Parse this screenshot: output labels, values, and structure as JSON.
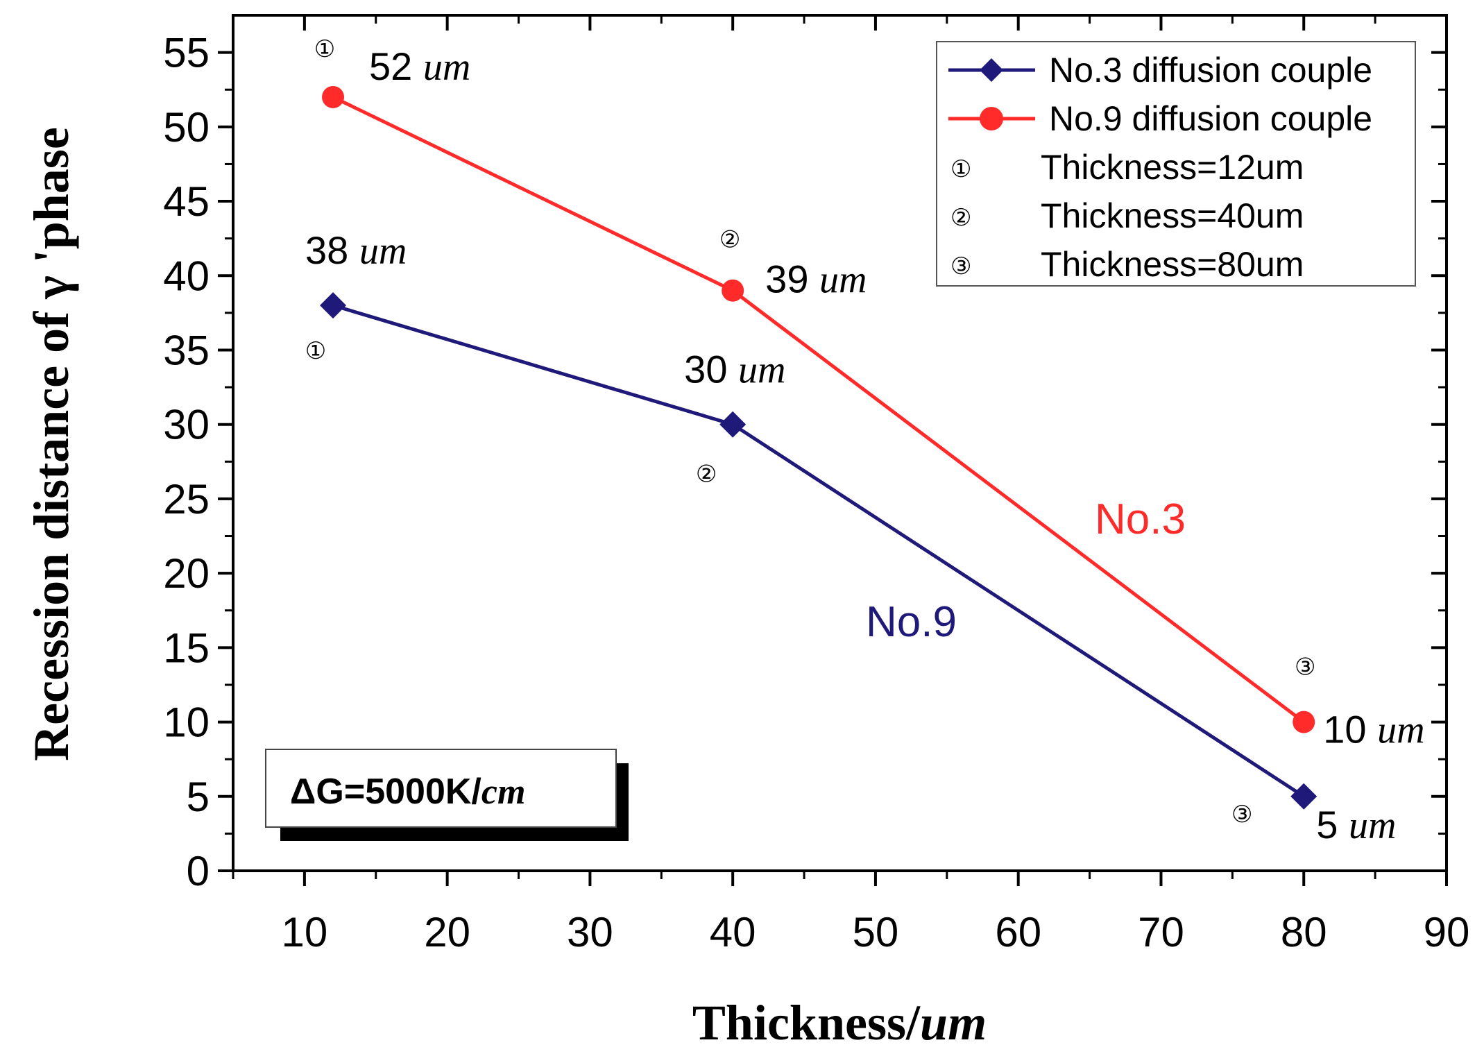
{
  "chart_data": {
    "type": "line",
    "xlabel": {
      "main": "Thickness/",
      "unit": "um"
    },
    "ylabel": "Recession distance of γ 'phase",
    "xlim": [
      5,
      90
    ],
    "ylim": [
      0,
      57.5
    ],
    "xticks": [
      10,
      20,
      30,
      40,
      50,
      60,
      70,
      80,
      90
    ],
    "yticks": [
      0,
      5,
      10,
      15,
      20,
      25,
      30,
      35,
      40,
      45,
      50,
      55
    ],
    "x_tick_labels": [
      "10",
      "20",
      "30",
      "40",
      "50",
      "60",
      "70",
      "80",
      "90"
    ],
    "y_tick_labels": [
      "0",
      "5",
      "10",
      "15",
      "20",
      "25",
      "30",
      "35",
      "40",
      "45",
      "50",
      "55"
    ],
    "grid": false,
    "legend_position": "top-right",
    "series": [
      {
        "name": "No.3 diffusion couple",
        "marker": "diamond",
        "color": "#1f1a7a",
        "x": [
          12,
          40,
          80
        ],
        "values": [
          38,
          30,
          5
        ],
        "labels": [
          {
            "num": "38",
            "unit": "um"
          },
          {
            "num": "30",
            "unit": "um"
          },
          {
            "num": "5",
            "unit": "um"
          }
        ]
      },
      {
        "name": "No.9 diffusion couple",
        "marker": "circle",
        "color": "#ff2a2a",
        "x": [
          12,
          40,
          80
        ],
        "values": [
          52,
          39,
          10
        ],
        "labels": [
          {
            "num": "52",
            "unit": "um"
          },
          {
            "num": "39",
            "unit": "um"
          },
          {
            "num": "10",
            "unit": "um"
          }
        ]
      }
    ],
    "legend_extra": [
      {
        "symbol": "①",
        "text": "Thickness=12um"
      },
      {
        "symbol": "②",
        "text": "Thickness=40um"
      },
      {
        "symbol": "③",
        "text": "Thickness=80um"
      }
    ],
    "point_symbols": [
      "①",
      "②",
      "③"
    ],
    "annotations": [
      {
        "text": "No.3",
        "color": "#ff2a2a"
      },
      {
        "text": "No.9",
        "color": "#1f1a7a"
      }
    ],
    "condition_box": {
      "prefix": "ΔG=5000K/",
      "unit": "cm"
    }
  }
}
